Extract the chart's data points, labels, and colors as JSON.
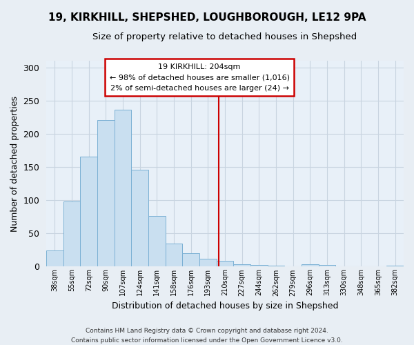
{
  "title": "19, KIRKHILL, SHEPSHED, LOUGHBOROUGH, LE12 9PA",
  "subtitle": "Size of property relative to detached houses in Shepshed",
  "xlabel": "Distribution of detached houses by size in Shepshed",
  "ylabel": "Number of detached properties",
  "bar_labels": [
    "38sqm",
    "55sqm",
    "72sqm",
    "90sqm",
    "107sqm",
    "124sqm",
    "141sqm",
    "158sqm",
    "176sqm",
    "193sqm",
    "210sqm",
    "227sqm",
    "244sqm",
    "262sqm",
    "279sqm",
    "296sqm",
    "313sqm",
    "330sqm",
    "348sqm",
    "365sqm",
    "382sqm"
  ],
  "bar_values": [
    24,
    98,
    166,
    221,
    236,
    146,
    76,
    35,
    20,
    12,
    9,
    4,
    2,
    1,
    0,
    4,
    2,
    0,
    0,
    0,
    1
  ],
  "bar_color": "#c9dff0",
  "bar_edge_color": "#7ab0d4",
  "ylim": [
    0,
    310
  ],
  "yticks": [
    0,
    50,
    100,
    150,
    200,
    250,
    300
  ],
  "annotation_title": "19 KIRKHILL: 204sqm",
  "annotation_line1": "← 98% of detached houses are smaller (1,016)",
  "annotation_line2": "2% of semi-detached houses are larger (24) →",
  "annotation_box_color": "#ffffff",
  "annotation_box_edge_color": "#cc0000",
  "vline_color": "#cc0000",
  "footnote1": "Contains HM Land Registry data © Crown copyright and database right 2024.",
  "footnote2": "Contains public sector information licensed under the Open Government Licence v3.0.",
  "bg_color": "#e8eef4",
  "plot_bg_color": "#e8f0f8",
  "grid_color": "#c8d4e0"
}
